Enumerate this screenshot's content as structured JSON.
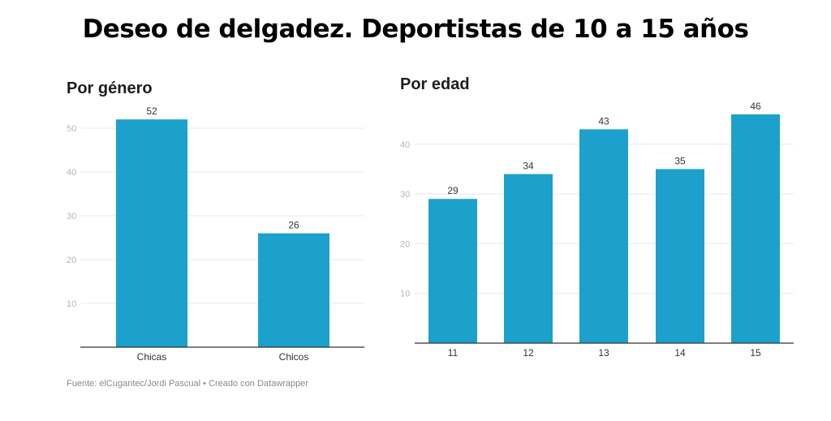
{
  "title": "Deseo de delgadez. Deportistas de 10 a 15 años",
  "source": "Fuente: elCugantec/Jordi Pascual • Creado con Datawrapper",
  "colors": {
    "bar": "#1ba1cc",
    "grid": "#e8e8e8",
    "axis": "#333333"
  },
  "chart_data": [
    {
      "type": "bar",
      "title": "Por género",
      "xlabel": "",
      "ylabel": "",
      "categories": [
        "Chicas",
        "Chicos"
      ],
      "values": [
        52,
        26
      ],
      "ylim": [
        0,
        55
      ],
      "yticks": [
        10,
        20,
        30,
        40,
        50
      ],
      "grid": true,
      "data_labels": [
        "52",
        "26"
      ]
    },
    {
      "type": "bar",
      "title": "Por edad",
      "xlabel": "",
      "ylabel": "",
      "categories": [
        "11",
        "12",
        "13",
        "14",
        "15"
      ],
      "values": [
        29,
        34,
        43,
        35,
        46
      ],
      "ylim": [
        0,
        46
      ],
      "yticks": [
        10,
        20,
        30,
        40
      ],
      "grid": true,
      "data_labels": [
        "29",
        "34",
        "43",
        "35",
        "46"
      ]
    }
  ]
}
